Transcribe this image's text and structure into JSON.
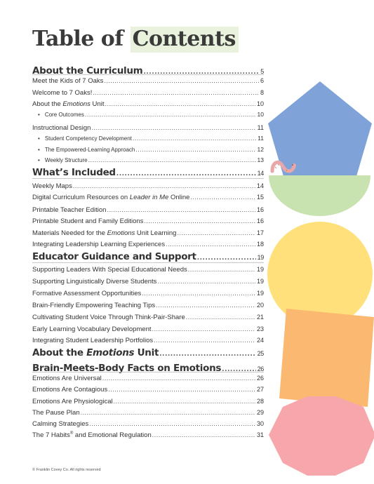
{
  "title": {
    "prefix": "Table of ",
    "highlight": "Contents"
  },
  "sections": [
    {
      "title": "About the Curriculum",
      "page": "5",
      "entries": [
        {
          "label": "Meet the Kids of 7 Oaks",
          "page": "6"
        },
        {
          "label": "Welcome to 7 Oaks!",
          "page": "8"
        },
        {
          "label_pre": "About the ",
          "label_em": "Emotions",
          "label_post": " Unit",
          "page": "10"
        },
        {
          "label": "Core Outcomes",
          "page": "10",
          "sub": true
        },
        {
          "label": "Instructional Design",
          "page": "11"
        },
        {
          "label": "Student Competency Development",
          "page": "11",
          "sub": true
        },
        {
          "label": "The Empowered-Learning Approach",
          "page": "12",
          "sub": true
        },
        {
          "label": "Weekly Structure",
          "page": "13",
          "sub": true
        }
      ]
    },
    {
      "title": "What’s Included",
      "page": "14",
      "entries": [
        {
          "label": "Weekly Maps",
          "page": "14"
        },
        {
          "label_pre": "Digital Curriculum Resources on ",
          "label_em": "Leader in Me",
          "label_post": " Online",
          "page": "15"
        },
        {
          "label": "Printable Teacher Edition",
          "page": "16"
        },
        {
          "label": "Printable Student and Family Editions",
          "page": "16"
        },
        {
          "label_pre": "Materials Needed for the ",
          "label_em": "Emotions",
          "label_post": " Unit Learning",
          "page": "17"
        },
        {
          "label": "Integrating Leadership Learning Experiences",
          "page": "18"
        }
      ]
    },
    {
      "title": "Educator Guidance and Support",
      "page": "19",
      "entries": [
        {
          "label": "Supporting Leaders With Special Educational Needs",
          "page": "19"
        },
        {
          "label": "Supporting Linguistically Diverse Students",
          "page": "19"
        },
        {
          "label": "Formative Assessment Opportunities",
          "page": "19"
        },
        {
          "label": "Brain-Friendly Empowering Teaching Tips",
          "page": "20"
        },
        {
          "label": "Cultivating Student Voice Through Think-Pair-Share",
          "page": "21"
        },
        {
          "label": "Early Learning Vocabulary Development",
          "page": "23"
        },
        {
          "label": "Integrating Student Leadership Portfolios",
          "page": "24"
        }
      ]
    },
    {
      "title_pre": "About the ",
      "title_em": "Emotions",
      "title_post": " Unit",
      "page": "25",
      "entries": []
    },
    {
      "title": "Brain-Meets-Body Facts on Emotions",
      "page": "26",
      "entries": [
        {
          "label": "Emotions Are Universal",
          "page": "26"
        },
        {
          "label": "Emotions Are Contagious",
          "page": "27"
        },
        {
          "label": "Emotions Are Physiological",
          "page": "28"
        },
        {
          "label": "The Pause Plan",
          "page": "29"
        },
        {
          "label": "Calming Strategies",
          "page": "30"
        },
        {
          "label_pre": "The 7 Habits",
          "label_sup": "®",
          "label_post": " and Emotional Regulation",
          "page": "31"
        }
      ]
    }
  ],
  "footer": "© Franklin Covey Co. All rights reserved",
  "colors": {
    "title_highlight": "#e9f2dc",
    "pentagon": "#7fa2d8",
    "half_circle": "#c9e3b0",
    "circle": "#ffe07a",
    "square": "#fbb871",
    "octagon": "#f7a6ab",
    "worm": "#e9a7a7"
  },
  "shapes": [
    "pentagon",
    "half-circle",
    "circle",
    "square",
    "octagon"
  ]
}
